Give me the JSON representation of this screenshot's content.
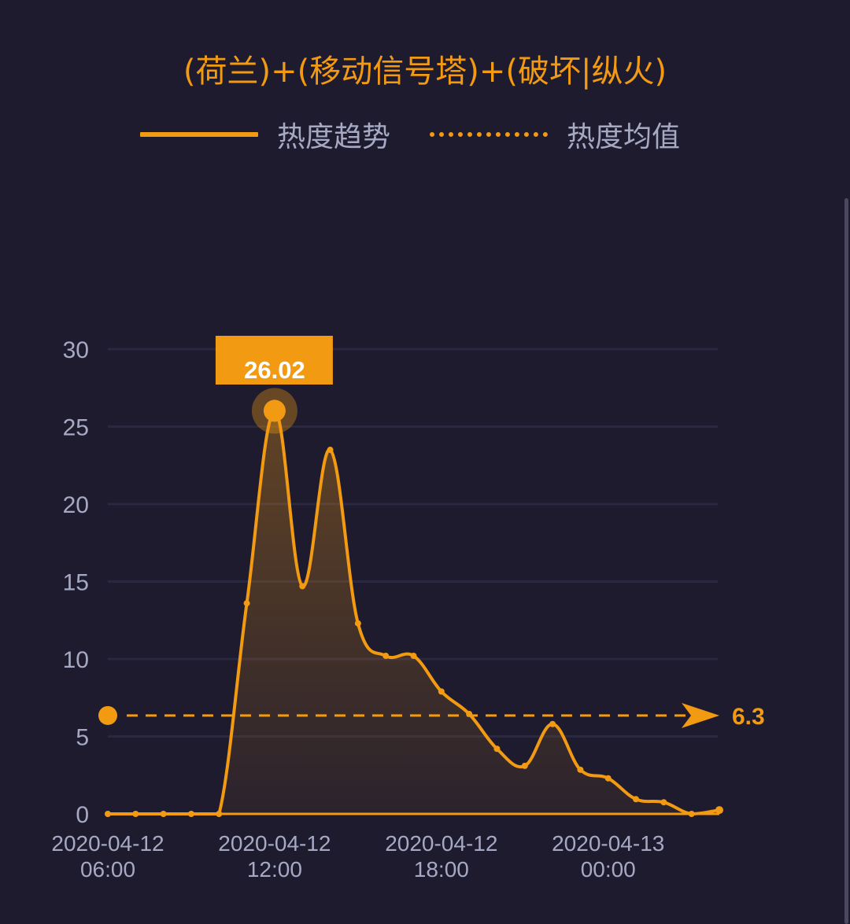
{
  "title": "(荷兰)+(移动信号塔)+(破坏|纵火)",
  "legend": {
    "trend_label": "热度趋势",
    "average_label": "热度均值"
  },
  "colors": {
    "background": "#1e1b2e",
    "accent": "#f29a12",
    "axis_text": "#a6a9c4",
    "grid": "#2a2740"
  },
  "peak": {
    "label": "26.02",
    "index": 6
  },
  "average": {
    "label": "6.3",
    "value": 6.3
  },
  "chart_data": {
    "type": "area",
    "title": "(荷兰)+(移动信号塔)+(破坏|纵火)",
    "xlabel": "",
    "ylabel": "",
    "ylim": [
      0,
      30
    ],
    "yticks": [
      0,
      5,
      10,
      15,
      20,
      25,
      30
    ],
    "grid": true,
    "legend_position": "top",
    "x": [
      "2020-04-12 06:00",
      "2020-04-12 07:00",
      "2020-04-12 08:00",
      "2020-04-12 09:00",
      "2020-04-12 10:00",
      "2020-04-12 11:00",
      "2020-04-12 12:00",
      "2020-04-12 13:00",
      "2020-04-12 14:00",
      "2020-04-12 15:00",
      "2020-04-12 16:00",
      "2020-04-12 17:00",
      "2020-04-12 18:00",
      "2020-04-12 19:00",
      "2020-04-12 20:00",
      "2020-04-12 21:00",
      "2020-04-12 22:00",
      "2020-04-12 23:00",
      "2020-04-13 00:00",
      "2020-04-13 01:00",
      "2020-04-13 02:00",
      "2020-04-13 03:00",
      "2020-04-13 04:00"
    ],
    "xtick_labels": [
      {
        "index": 0,
        "date": "2020-04-12",
        "time": "06:00"
      },
      {
        "index": 6,
        "date": "2020-04-12",
        "time": "12:00"
      },
      {
        "index": 12,
        "date": "2020-04-12",
        "time": "18:00"
      },
      {
        "index": 18,
        "date": "2020-04-13",
        "time": "00:00"
      }
    ],
    "series": [
      {
        "name": "热度趋势",
        "values": [
          0,
          0,
          0,
          0,
          0,
          13.6,
          26.02,
          14.7,
          23.5,
          12.3,
          10.2,
          10.2,
          7.9,
          6.45,
          4.2,
          3.1,
          5.8,
          2.85,
          2.3,
          0.95,
          0.75,
          0,
          0.25
        ]
      },
      {
        "name": "热度均值",
        "values": [
          6.3
        ]
      }
    ],
    "annotations": [
      {
        "type": "max",
        "index": 6,
        "text": "26.02"
      },
      {
        "type": "average-line",
        "value": 6.3,
        "text": "6.3"
      }
    ]
  }
}
